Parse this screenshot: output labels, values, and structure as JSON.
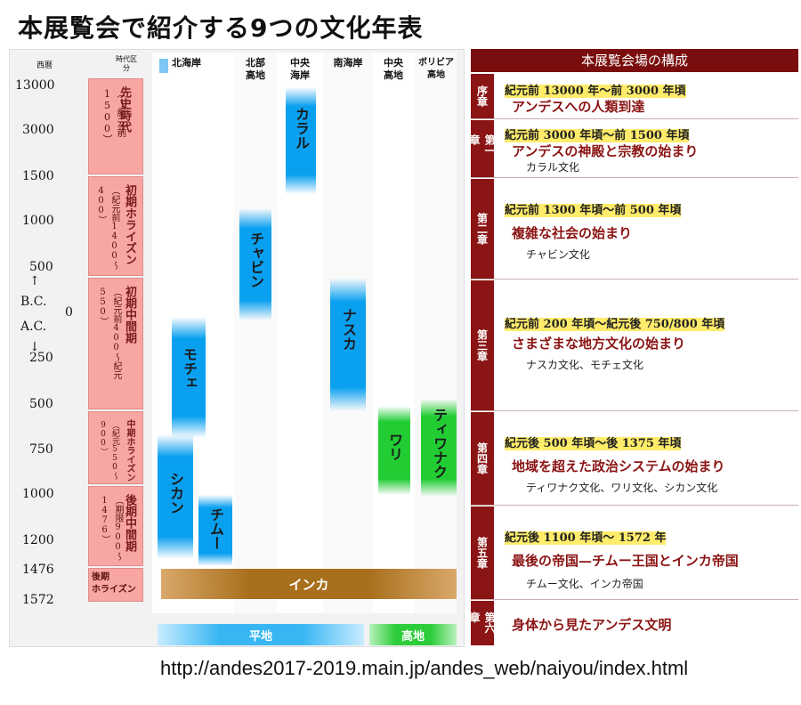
{
  "title": "本展覧会で紹介する9つの文化年表",
  "footer_url": "http://andes2017-2019.main.jp/andes_web/naiyou/index.html",
  "timeline": {
    "year_header": "西暦",
    "period_header": "時代区分",
    "columns": [
      {
        "key": "north_coast",
        "label": "北海岸"
      },
      {
        "key": "north_high",
        "label": "北部\n高地"
      },
      {
        "key": "central_coast",
        "label": "中央\n海岸"
      },
      {
        "key": "south_coast",
        "label": "南海岸"
      },
      {
        "key": "central_high",
        "label": "中央\n高地"
      },
      {
        "key": "bolivia_high",
        "label": "ボリビア\n高地"
      }
    ],
    "years": [
      "13000",
      "3000",
      "1500",
      "1000",
      "500",
      "0",
      "250",
      "500",
      "750",
      "1000",
      "1200",
      "1476",
      "1572"
    ],
    "axis_up": "↑",
    "axis_bc": "B.C.",
    "axis_ac": "A.C.",
    "axis_down": "↓",
    "periods": [
      {
        "name": "先史時代",
        "range": "（〜紀元前1500）"
      },
      {
        "name": "初期ホライズン",
        "range": "（紀元前1400〜400）"
      },
      {
        "name": "初期中間期",
        "range": "（紀元前400〜紀元550）"
      },
      {
        "name": "中期ホライズン",
        "range": "（紀元550〜900）"
      },
      {
        "name": "後期中間期",
        "range": "（期限900〜1476）"
      },
      {
        "name": "後期\nホライズン",
        "range": ""
      }
    ],
    "cultures": [
      {
        "name": "カラル",
        "color": "#0aa0f0"
      },
      {
        "name": "チャビン",
        "color": "#0aa0f0"
      },
      {
        "name": "ナスカ",
        "color": "#0aa0f0"
      },
      {
        "name": "モチェ",
        "color": "#0aa0f0"
      },
      {
        "name": "ワリ",
        "color": "#22cc33"
      },
      {
        "name": "ティワナク",
        "color": "#22cc33"
      },
      {
        "name": "シカン",
        "color": "#0aa0f0"
      },
      {
        "name": "チムー",
        "color": "#0aa0f0"
      },
      {
        "name": "インカ",
        "color": "#a86f1c"
      }
    ],
    "bands": {
      "lowland": "平地",
      "highland": "高地"
    }
  },
  "composition": {
    "title": "本展覧会場の構成",
    "chapters": [
      {
        "tag": "序章",
        "period": "紀元前 13000 年〜前 3000 年頃",
        "theme": "アンデスへの人類到達",
        "cultures": ""
      },
      {
        "tag": "第一章",
        "period": "紀元前 3000 年頃〜前 1500 年頃",
        "theme": "アンデスの神殿と宗教の始まり",
        "cultures": "カラル文化"
      },
      {
        "tag": "第二章",
        "period": "紀元前 1300 年頃〜前 500 年頃",
        "theme": "複雑な社会の始まり",
        "cultures": "チャビン文化"
      },
      {
        "tag": "第三章",
        "period": "紀元前 200 年頃〜紀元後 750/800 年頃",
        "theme": "さまざまな地方文化の始まり",
        "cultures": "ナスカ文化、モチェ文化"
      },
      {
        "tag": "第四章",
        "period": "紀元後 500 年頃〜後 1375 年頃",
        "theme": "地域を超えた政治システムの始まり",
        "cultures": "ティワナク文化、ワリ文化、シカン文化"
      },
      {
        "tag": "第五章",
        "period": "紀元後 1100 年頃〜 1572 年",
        "theme": "最後の帝国—チムー王国とインカ帝国",
        "cultures": "チムー文化、インカ帝国"
      },
      {
        "tag": "第六章",
        "period": "",
        "theme": "身体から見たアンデス文明",
        "cultures": ""
      }
    ]
  }
}
